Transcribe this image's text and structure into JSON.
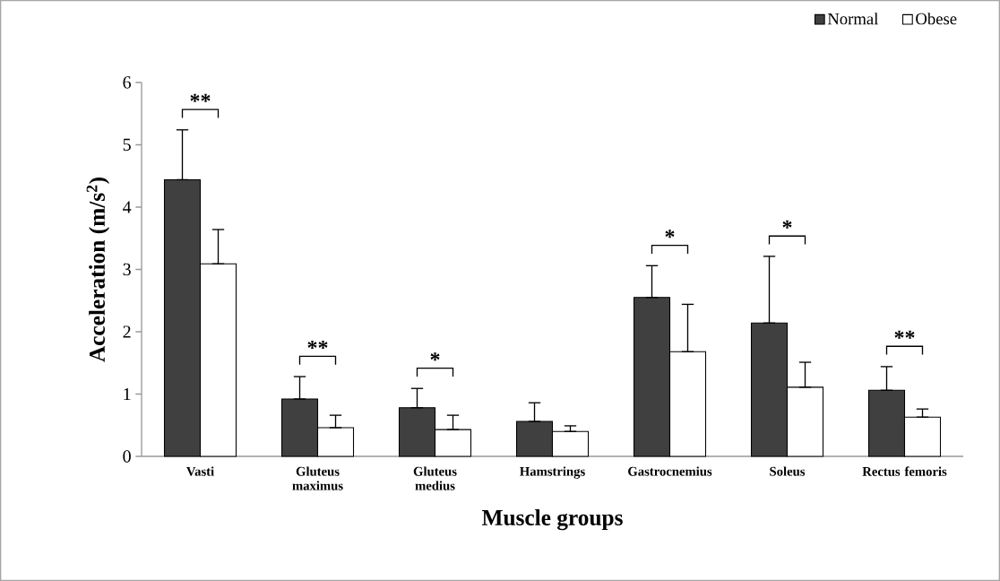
{
  "chart_data": {
    "type": "bar",
    "xlabel": "Muscle groups",
    "ylabel": "**Acceleration (m/s$^{2}$)**",
    "categories": [
      "Vasti",
      "Gluteus maximus",
      "Gluteus medius",
      "Hamstrings",
      "Gastrocnemius",
      "Soleus",
      "Rectus femoris"
    ],
    "series": [
      {
        "name": "Normal",
        "color": "#404040",
        "values": [
          4.44,
          0.92,
          0.78,
          0.56,
          2.55,
          2.14,
          1.06
        ],
        "errors": [
          [
            4.44,
            5.24
          ],
          [
            0.92,
            1.28
          ],
          [
            0.78,
            1.09
          ],
          [
            0.56,
            0.86
          ],
          [
            2.55,
            3.06
          ],
          [
            2.14,
            3.21
          ],
          [
            1.06,
            1.44
          ]
        ]
      },
      {
        "name": "Obese",
        "color": "#ffffff",
        "values": [
          3.09,
          0.46,
          0.43,
          0.4,
          1.68,
          1.11,
          0.63
        ],
        "errors": [
          [
            3.09,
            3.64
          ],
          [
            0.46,
            0.66
          ],
          [
            0.43,
            0.66
          ],
          [
            0.4,
            0.49
          ],
          [
            1.68,
            2.44
          ],
          [
            1.11,
            1.51
          ],
          [
            0.63,
            0.76
          ]
        ]
      }
    ],
    "ylim": [
      0,
      6
    ],
    "yticks": [
      0,
      1,
      2,
      3,
      4,
      5,
      6
    ],
    "grid": false,
    "legend": "top right",
    "annotations": [
      "**",
      "**",
      "*",
      "*",
      "*",
      "**"
    ]
  }
}
